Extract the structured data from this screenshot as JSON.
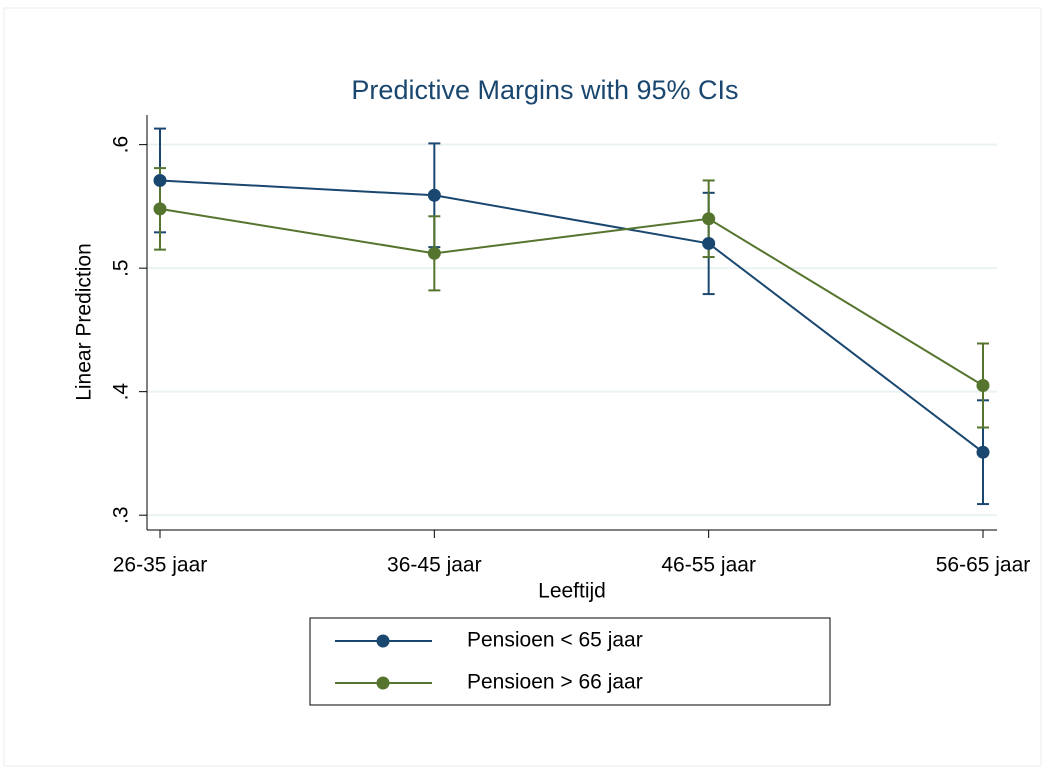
{
  "chart_data": {
    "type": "line",
    "title": "Predictive Margins with 95% CIs",
    "x_label": "Leeftijd",
    "y_label": "Linear Prediction",
    "categories": [
      "26-35 jaar",
      "36-45 jaar",
      "46-55 jaar",
      "56-65 jaar"
    ],
    "series": [
      {
        "name": "Pensioen < 65 jaar",
        "color": "#1a476f",
        "values": [
          0.571,
          0.559,
          0.52,
          0.351
        ],
        "errors": [
          0.042,
          0.042,
          0.041,
          0.042
        ]
      },
      {
        "name": "Pensioen > 66 jaar",
        "color": "#55752f",
        "values": [
          0.548,
          0.512,
          0.54,
          0.405
        ],
        "errors": [
          0.033,
          0.03,
          0.031,
          0.034
        ]
      }
    ],
    "ylim": [
      0.288,
      0.624
    ],
    "yticks": [
      {
        "value": 0.3,
        "label": ".3"
      },
      {
        "value": 0.4,
        "label": ".4"
      },
      {
        "value": 0.5,
        "label": ".5"
      },
      {
        "value": 0.6,
        "label": ".6"
      }
    ],
    "grid": true
  }
}
